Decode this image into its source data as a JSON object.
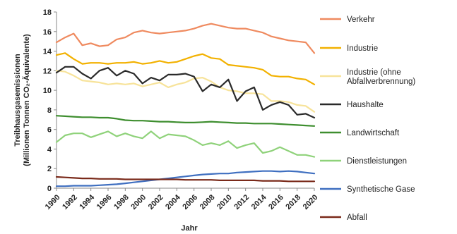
{
  "chart_data": {
    "type": "line",
    "xlabel": "Jahr",
    "ylabel_line1": "Treibhausgasemissionen",
    "ylabel_line2": "(Millionen Tonnen CO₂-Äquivalente)",
    "ylim": [
      0,
      18
    ],
    "yticks": [
      "0",
      "2",
      "4",
      "6",
      "8",
      "10",
      "12",
      "14",
      "16",
      "18"
    ],
    "x": [
      1990,
      1991,
      1992,
      1993,
      1994,
      1995,
      1996,
      1997,
      1998,
      1999,
      2000,
      2001,
      2002,
      2003,
      2004,
      2005,
      2006,
      2007,
      2008,
      2009,
      2010,
      2011,
      2012,
      2013,
      2014,
      2015,
      2016,
      2017,
      2018,
      2019,
      2020
    ],
    "xticks": [
      "1990",
      "1992",
      "1994",
      "1996",
      "1998",
      "2000",
      "2002",
      "2004",
      "2006",
      "2008",
      "2010",
      "2012",
      "2014",
      "2016",
      "2018",
      "2020"
    ],
    "grid": false,
    "legend_position": "right",
    "series": [
      {
        "name": "Verkehr",
        "color": "#ef8a5f",
        "values": [
          14.9,
          15.4,
          15.8,
          14.6,
          14.8,
          14.5,
          14.6,
          15.2,
          15.4,
          15.9,
          16.1,
          15.9,
          15.8,
          15.9,
          16.0,
          16.1,
          16.3,
          16.6,
          16.8,
          16.6,
          16.4,
          16.3,
          16.3,
          16.1,
          15.9,
          15.5,
          15.3,
          15.1,
          15.0,
          14.9,
          13.8
        ]
      },
      {
        "name": "Industrie",
        "color": "#f2b100",
        "values": [
          13.6,
          13.8,
          13.2,
          12.7,
          12.8,
          12.8,
          12.7,
          12.8,
          12.8,
          12.9,
          12.7,
          12.8,
          13.0,
          12.8,
          12.9,
          13.2,
          13.5,
          13.7,
          13.3,
          13.2,
          12.6,
          12.5,
          12.4,
          12.3,
          12.1,
          11.5,
          11.4,
          11.4,
          11.2,
          11.1,
          10.6
        ]
      },
      {
        "name": "Industrie (ohne Abfallverbrennung)",
        "color": "#f7e39a",
        "values": [
          12.0,
          11.9,
          11.5,
          11.0,
          10.9,
          10.8,
          10.6,
          10.7,
          10.6,
          10.7,
          10.4,
          10.6,
          10.8,
          10.3,
          10.6,
          10.8,
          11.2,
          11.3,
          10.9,
          10.3,
          10.0,
          9.9,
          9.7,
          9.7,
          9.6,
          8.9,
          8.9,
          8.8,
          8.5,
          8.4,
          7.8
        ]
      },
      {
        "name": "Haushalte",
        "color": "#2a2a2a",
        "values": [
          11.8,
          12.4,
          12.4,
          11.7,
          11.2,
          12.0,
          12.3,
          11.5,
          12.0,
          11.7,
          10.7,
          11.3,
          11.0,
          11.6,
          11.6,
          11.7,
          11.4,
          9.9,
          10.6,
          10.3,
          11.1,
          8.9,
          9.9,
          10.3,
          8.0,
          8.5,
          8.8,
          8.5,
          7.5,
          7.6,
          7.2
        ]
      },
      {
        "name": "Landwirtschaft",
        "color": "#3e8e2f",
        "values": [
          7.4,
          7.35,
          7.3,
          7.25,
          7.25,
          7.2,
          7.2,
          7.1,
          6.95,
          6.9,
          6.9,
          6.85,
          6.8,
          6.8,
          6.75,
          6.7,
          6.7,
          6.75,
          6.8,
          6.75,
          6.7,
          6.65,
          6.65,
          6.6,
          6.6,
          6.6,
          6.55,
          6.5,
          6.45,
          6.4,
          6.35
        ]
      },
      {
        "name": "Dienstleistungen",
        "color": "#8fd27a",
        "values": [
          4.7,
          5.4,
          5.6,
          5.6,
          5.2,
          5.5,
          5.8,
          5.3,
          5.6,
          5.3,
          5.1,
          5.8,
          5.1,
          5.5,
          5.4,
          5.3,
          4.9,
          4.4,
          4.6,
          4.4,
          4.8,
          4.1,
          4.4,
          4.6,
          3.6,
          3.8,
          4.2,
          3.8,
          3.4,
          3.4,
          3.2
        ]
      },
      {
        "name": "Synthetische Gase",
        "color": "#3f6fc0",
        "values": [
          0.2,
          0.2,
          0.25,
          0.25,
          0.25,
          0.3,
          0.35,
          0.4,
          0.5,
          0.6,
          0.7,
          0.8,
          0.9,
          1.0,
          1.1,
          1.2,
          1.3,
          1.4,
          1.45,
          1.5,
          1.5,
          1.6,
          1.65,
          1.7,
          1.75,
          1.75,
          1.7,
          1.75,
          1.7,
          1.6,
          1.5
        ]
      },
      {
        "name": "Abfall",
        "color": "#7a2a1a",
        "values": [
          1.15,
          1.1,
          1.05,
          1.0,
          1.0,
          0.95,
          0.95,
          0.95,
          0.9,
          0.9,
          0.9,
          0.9,
          0.9,
          0.9,
          0.9,
          0.85,
          0.85,
          0.85,
          0.85,
          0.8,
          0.8,
          0.8,
          0.8,
          0.8,
          0.75,
          0.75,
          0.75,
          0.7,
          0.7,
          0.7,
          0.7
        ]
      }
    ],
    "legend_lines": [
      [
        "Verkehr"
      ],
      [
        "Industrie"
      ],
      [
        "Industrie (ohne",
        "Abfallverbrennung)"
      ],
      [
        "Haushalte"
      ],
      [
        "Landwirtschaft"
      ],
      [
        "Dienstleistungen"
      ],
      [
        "Synthetische Gase"
      ],
      [
        "Abfall"
      ]
    ]
  }
}
